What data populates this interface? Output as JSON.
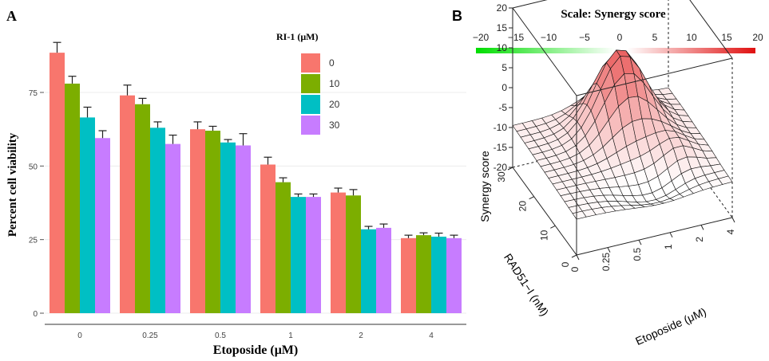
{
  "panel_a": {
    "letter": "A",
    "chart_data": {
      "type": "bar",
      "title": "",
      "xlabel": "Etoposide (μM)",
      "ylabel": "Percent cell viability",
      "categories": [
        "0",
        "0.25",
        "0.5",
        "1",
        "2",
        "4"
      ],
      "yticks": [
        0,
        25,
        50,
        75
      ],
      "ylim": [
        0,
        90
      ],
      "grid": true,
      "legend_title": "RI-1 (μM)",
      "legend_position": "top-right",
      "series": [
        {
          "name": "0",
          "color": "#f8766d",
          "values": [
            88.5,
            74,
            62.5,
            50.5,
            41,
            25.5
          ],
          "errors": [
            3.5,
            3.5,
            2.5,
            2.5,
            1.5,
            1.0
          ]
        },
        {
          "name": "10",
          "color": "#7cae00",
          "values": [
            78,
            71,
            62,
            44.5,
            40,
            26.5
          ],
          "errors": [
            2.5,
            2,
            1.5,
            1.5,
            2,
            0.8
          ]
        },
        {
          "name": "20",
          "color": "#00bfc4",
          "values": [
            66.5,
            63,
            58,
            39.5,
            28.5,
            26
          ],
          "errors": [
            3.5,
            2,
            1,
            1,
            1,
            1.2
          ]
        },
        {
          "name": "30",
          "color": "#c77cff",
          "values": [
            59.5,
            57.5,
            57,
            39.5,
            29,
            25.5
          ],
          "errors": [
            2.5,
            3,
            4,
            1,
            1.3,
            1.0
          ]
        }
      ]
    }
  },
  "panel_b": {
    "letter": "B",
    "scale_title": "Scale: Synergy score",
    "scale_ticks": [
      "−20",
      "−15",
      "−10",
      "−5",
      "0",
      "5",
      "10",
      "15",
      "20"
    ],
    "chart_data": {
      "type": "surface",
      "zlabel": "Synergy score",
      "xlabel": "Etoposide (μM)",
      "ylabel": "RAD51−I (nM)",
      "zticks": [
        "20",
        "15",
        "10",
        "5",
        "0",
        "-5",
        "-10",
        "-15",
        "-20"
      ],
      "xticks": [
        "0",
        "0.25",
        "0.5",
        "1",
        "2",
        "4"
      ],
      "yticks": [
        "0",
        "10",
        "20",
        "30"
      ],
      "zlim": [
        -20,
        20
      ],
      "color_low": "#00dd00",
      "color_high": "#e01010",
      "peak_value": 20
    }
  }
}
